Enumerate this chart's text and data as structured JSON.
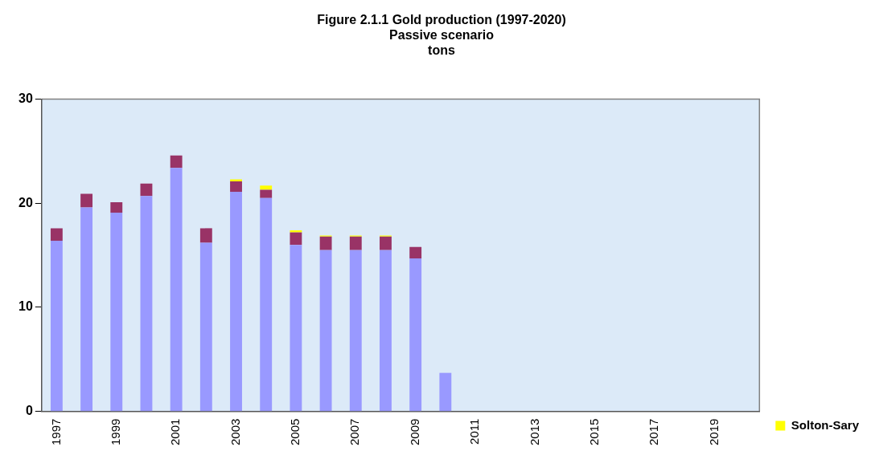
{
  "chart_data": {
    "type": "bar",
    "title": [
      "Figure 2.1.1 Gold production (1997-2020)",
      "Passive scenario",
      "tons"
    ],
    "categories": [
      "1997",
      null,
      "1999",
      null,
      "2001",
      null,
      "2003",
      null,
      "2005",
      null,
      "2007",
      null,
      "2009",
      null,
      "2011",
      null,
      "2013",
      null,
      "2015",
      null,
      "2017",
      null,
      "2019",
      null
    ],
    "stacked": true,
    "series": [
      {
        "color": "#9999ff",
        "values": [
          16.4,
          19.6,
          19.1,
          20.7,
          23.4,
          16.2,
          21.1,
          20.5,
          16.0,
          15.5,
          15.5,
          15.5,
          14.7,
          3.7,
          null,
          null,
          null,
          null,
          null,
          null,
          null,
          null,
          null,
          null
        ]
      },
      {
        "color": "#993366",
        "values": [
          1.2,
          1.3,
          1.0,
          1.2,
          1.2,
          1.4,
          1.0,
          0.8,
          1.2,
          1.3,
          1.3,
          1.3,
          1.1,
          null,
          null,
          null,
          null,
          null,
          null,
          null,
          null,
          null,
          null,
          null
        ]
      },
      {
        "name": "Solton-Sary",
        "color": "#ffff00",
        "values": [
          null,
          null,
          null,
          null,
          null,
          null,
          0.2,
          0.4,
          0.2,
          0.1,
          0.1,
          0.1,
          null,
          null,
          null,
          null,
          null,
          null,
          null,
          null,
          null,
          null,
          null,
          null
        ]
      }
    ],
    "ylim": [
      0,
      30
    ],
    "yticks": [
      0,
      10,
      20,
      30
    ],
    "grid": false,
    "legend": "bottom right"
  }
}
